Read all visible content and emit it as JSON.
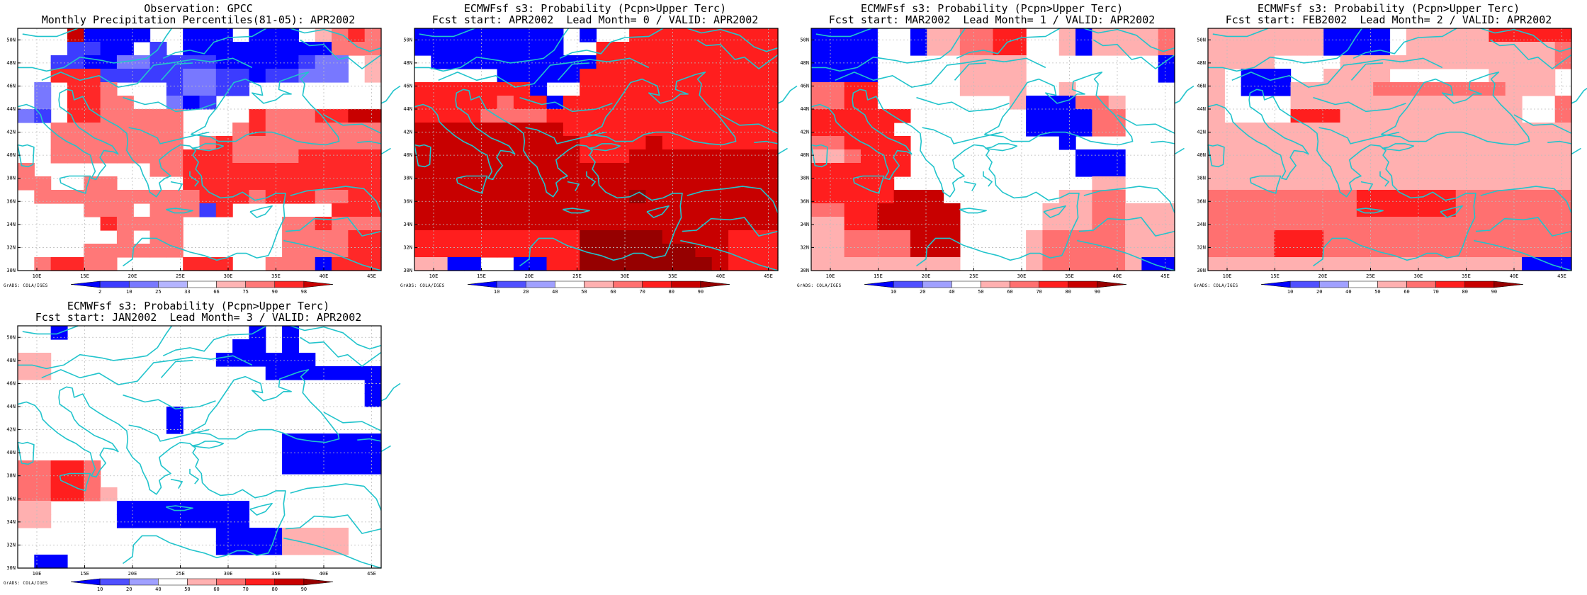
{
  "legends": {
    "obs": {
      "labels": [
        "2",
        "10",
        "25",
        "33",
        "66",
        "75",
        "90",
        "98"
      ],
      "colors": [
        "#0000ff",
        "#3c3cff",
        "#7878ff",
        "#b4b4ff",
        "#ffffff",
        "#ffb4b4",
        "#ff7878",
        "#ff2828",
        "#c80000"
      ]
    },
    "fcst": {
      "labels": [
        "10",
        "20",
        "40",
        "50",
        "60",
        "70",
        "80",
        "90"
      ],
      "colors": [
        "#0000ff",
        "#5050ff",
        "#a0a0ff",
        "#ffffff",
        "#ffb0b0",
        "#ff7070",
        "#ff1e1e",
        "#c80000",
        "#960000"
      ]
    }
  },
  "xticks": [
    "10E",
    "15E",
    "20E",
    "25E",
    "30E",
    "35E",
    "40E",
    "45E"
  ],
  "yticks": [
    "30N",
    "32N",
    "34N",
    "36N",
    "38N",
    "40N",
    "42N",
    "44N",
    "46N",
    "48N",
    "50N"
  ],
  "credit": "GrADS: COLA/IGES",
  "panels": [
    {
      "title1": "Observation: GPCC",
      "title2": "Monthly Precipitation Percentiles(81-05): APR2002",
      "legend": "obs",
      "chart_data": {
        "type": "heatmap",
        "x_range_deg_E": [
          8,
          46
        ],
        "y_range_deg_N": [
          30,
          51
        ],
        "cell_deg": 2.5,
        "value_meaning": "color class index 0-8 (0 = <2, 4 = 33-66 white, 8 = >98)",
        "rows_north_to_south": [
          "4448000044000400045676",
          "4441100414000000000666",
          "4411002211110000012245",
          "4477711111221101122245",
          "4247764441221144444444",
          "4247766442014444444444",
          "2147766666444476667788",
          "4466666666444676666666",
          "4466666666467666666666",
          "4466666666777666677777",
          "6444444466777777777777",
          "6644664444777777777777",
          "4666666666677767776677",
          "4444666466617444444777",
          "4444476666444444667666",
          "4444446466444444666677",
          "4444666666444444666677",
          "4677664444777446660777"
        ]
      }
    },
    {
      "title1": "ECMWFsf s3: Probability (Pcpn>Upper Terc)",
      "title2": "Fcst start: APR2002  Lead Month= 0 / VALID: APR2002",
      "legend": "fcst",
      "chart_data": {
        "type": "heatmap",
        "x_range_deg_E": [
          8,
          46
        ],
        "y_range_deg_N": [
          30,
          51
        ],
        "cell_deg": 2.5,
        "value_meaning": "probability class index 0-8 (0 = <10%, 3 = 40-50% white, 8 = >90%)",
        "rows_north_to_south": [
          "0000000003033666666666",
          "0000000003366666666666",
          "3000000000066666666666",
          "3333300000666666666666",
          "6666666033666666666666",
          "6666656606666666666666",
          "6666555566666666666666",
          "7777777776666666666666",
          "7777777777666676666666",
          "7777777777666777777777",
          "7777777777777777777777",
          "7777777777777777777777",
          "7777777777777877777777",
          "7777777777777777777777",
          "7777777777777777777777",
          "6666666666888887777666",
          "6666666666888888877666",
          "4400330066888888887666"
        ]
      }
    },
    {
      "title1": "ECMWFsf s3: Probability (Pcpn>Upper Terc)",
      "title2": "Fcst start: MAR2002  Lead Month= 1 / VALID: APR2002",
      "legend": "fcst",
      "chart_data": {
        "type": "heatmap",
        "x_range_deg_E": [
          8,
          46
        ],
        "y_range_deg_N": [
          30,
          51
        ],
        "cell_deg": 2.5,
        "value_meaning": "probability class index 0-8 (0 = <10%, 3 = 40-50% white, 8 = >90%)",
        "rows_north_to_south": [
          "0000330445566334044445",
          "0000330445566334044445",
          "0000333334444333333330",
          "0000333334444333333330",
          "5566333334444334333333",
          "5566333333334000554333",
          "6666663333333000055333",
          "6666633333333000055333",
          "5566663333333330333333",
          "4456663333333333000333",
          "6666663333333333000333",
          "6666633333333333344333",
          "6666677733333334455333",
          "5566777773333344455444",
          "4466777773333344455444",
          "4455557773333455555444",
          "4455557773333455555444",
          "4444444443333455555400"
        ]
      }
    },
    {
      "title1": "ECMWFsf s3: Probability (Pcpn>Upper Terc)",
      "title2": "Fcst start: FEB2002  Lead Month= 2 / VALID: APR2002",
      "legend": "fcst",
      "chart_data": {
        "type": "heatmap",
        "x_range_deg_E": [
          8,
          46
        ],
        "y_range_deg_N": [
          30,
          51
        ],
        "cell_deg": 2.5,
        "value_meaning": "probability class index 0-8 (0 = <10%, 3 = 40-50% white, 8 = >90%)",
        "rows_north_to_south": [
          "4444444000034444466666",
          "4444444000034444444445",
          "4444333344444444444445",
          "4300033444433333344443",
          "4300044444555555554443",
          "4333344444444444444335",
          "4333366644444444444335",
          "4444444444444444444444",
          "4444444444444444444444",
          "4444444444444444444444",
          "4444444444444444444444",
          "4444444444444444444444",
          "5555555556666665555555",
          "5555555556666665555555",
          "5555555555555555555555",
          "5555666555555555555555",
          "5555666555555555555555",
          "4444444444444444444000"
        ]
      }
    },
    {
      "title1": "ECMWFsf s3: Probability (Pcpn>Upper Terc)",
      "title2": "Fcst start: JAN2002  Lead Month= 3 / VALID: APR2002",
      "legend": "fcst",
      "chart_data": {
        "type": "heatmap",
        "x_range_deg_E": [
          8,
          46
        ],
        "y_range_deg_N": [
          30,
          51
        ],
        "cell_deg": 2.5,
        "value_meaning": "probability class index 0-8 (0 = <10%, 3 = 40-50% white, 8 = >90%)",
        "rows_north_to_south": [
          "3303333333333303033333",
          "3333333333333003033333",
          "4433333333330000003333",
          "4433333333333330000000",
          "3333333333333333333330",
          "3333333333333333333330",
          "3333333330333333333333",
          "3333333330333333333333",
          "3333333333333333000000",
          "3333333333333333000000",
          "5566533333333333000000",
          "5566533333333333333333",
          "5566543333333333333333",
          "4433330000000033333333",
          "4433330000000033333333",
          "3333333333330000444433",
          "3333333333330000444433",
          "3003333333333333333333"
        ]
      }
    }
  ]
}
